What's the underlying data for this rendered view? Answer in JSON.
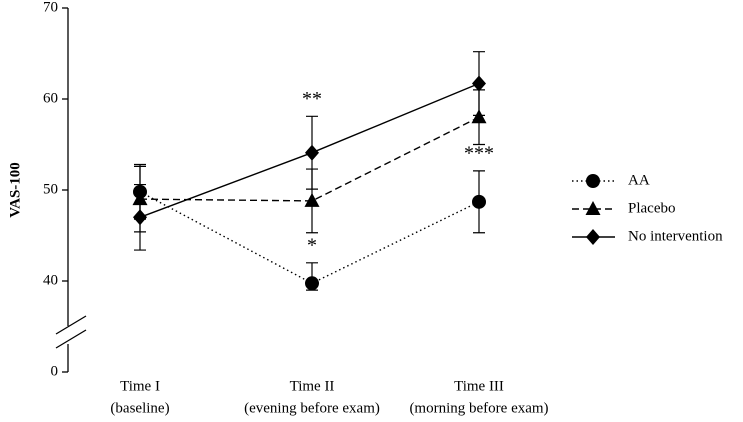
{
  "chart_data": {
    "type": "line",
    "ylabel": "VAS-100",
    "categories": [
      [
        "Time I",
        "(baseline)"
      ],
      [
        "Time II",
        "(evening before exam)"
      ],
      [
        "Time III",
        "(morning before exam)"
      ]
    ],
    "ylim": [
      0,
      70
    ],
    "yticks": [
      0,
      40,
      50,
      60,
      70
    ],
    "ybreak": [
      0,
      40
    ],
    "series": [
      {
        "name": "AA",
        "color": "#000",
        "dash": "dotted",
        "marker": "circle",
        "values": [
          49.8,
          39,
          48.7
        ],
        "errors": [
          3,
          3,
          3.4
        ]
      },
      {
        "name": "Placebo",
        "color": "#000",
        "dash": "dashed",
        "marker": "triangle",
        "values": [
          49,
          48.8,
          58
        ],
        "errors": [
          3.6,
          3.5,
          3
        ]
      },
      {
        "name": "No intervention",
        "color": "#000",
        "dash": "solid",
        "marker": "diamond",
        "values": [
          47,
          54.1,
          61.7
        ],
        "errors": [
          3.6,
          4,
          3.5
        ]
      }
    ],
    "annotations": [
      {
        "text": "*",
        "series": 0,
        "index": 1
      },
      {
        "text": "**",
        "series": 2,
        "index": 1
      },
      {
        "text": "***",
        "series": 0,
        "index": 2
      }
    ],
    "legend": "right"
  }
}
